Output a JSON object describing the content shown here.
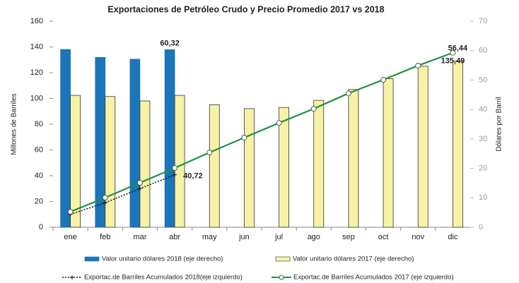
{
  "chart_data": {
    "type": "bar",
    "title": "Exportaciones de Petróleo Crudo y Precio Promedio 2017 vs 2018",
    "y_label": "Millones de Barriles",
    "y2_label": "Dólares por Barril",
    "categories": [
      "ene",
      "feb",
      "mar",
      "abr",
      "may",
      "jun",
      "jul",
      "ago",
      "sep",
      "oct",
      "nov",
      "dic"
    ],
    "ylim": [
      0,
      160
    ],
    "yticks": [
      0,
      20,
      40,
      60,
      80,
      100,
      120,
      140,
      160
    ],
    "y2lim": [
      0,
      70
    ],
    "y2ticks": [
      0,
      10,
      20,
      30,
      40,
      50,
      60,
      70
    ],
    "grid": false,
    "legend": "bottom",
    "series": [
      {
        "name": "Valor unitario dólares 2018 (eje derecho)",
        "type": "bar",
        "axis": "y2",
        "color": "#1b75bb",
        "label_color": "#1b75bb",
        "values": [
          60.4,
          57.7,
          57.1,
          60.32,
          null,
          null,
          null,
          null,
          null,
          null,
          null,
          null
        ],
        "value_labels": [
          null,
          null,
          null,
          "60,32",
          null,
          null,
          null,
          null,
          null,
          null,
          null,
          null
        ]
      },
      {
        "name": "Valor unitario dólares 2017 (eje derecho)",
        "type": "bar",
        "axis": "y2",
        "color": "#f7f3a6",
        "label_color": "#222222",
        "values": [
          44.8,
          44.4,
          42.9,
          44.8,
          41.6,
          40.3,
          40.7,
          43.1,
          46.8,
          50.5,
          54.7,
          56.44
        ],
        "value_labels": [
          null,
          null,
          null,
          null,
          null,
          null,
          null,
          null,
          null,
          null,
          null,
          "56,44"
        ]
      },
      {
        "name": "Exportac.de Barriles Acumulados 2018(eje izquierdo)",
        "type": "line",
        "dashed": true,
        "color": "#111111",
        "label_color": "#222222",
        "values": [
          10,
          19,
          30,
          40.72,
          null,
          null,
          null,
          null,
          null,
          null,
          null,
          null
        ],
        "value_labels": [
          null,
          null,
          null,
          "40,72",
          null,
          null,
          null,
          null,
          null,
          null,
          null,
          null
        ]
      },
      {
        "name": "Exportac.de Barriles Acumulados 2017 (eje izquierdo)",
        "type": "line",
        "dashed": false,
        "color": "#1e9142",
        "label_color": "#1e9142",
        "values": [
          12,
          23,
          34.5,
          46,
          58,
          69.6,
          81,
          92,
          104,
          114.5,
          125.5,
          135.49
        ],
        "value_labels": [
          null,
          null,
          null,
          null,
          null,
          null,
          null,
          null,
          null,
          null,
          null,
          "135,49"
        ]
      }
    ]
  }
}
